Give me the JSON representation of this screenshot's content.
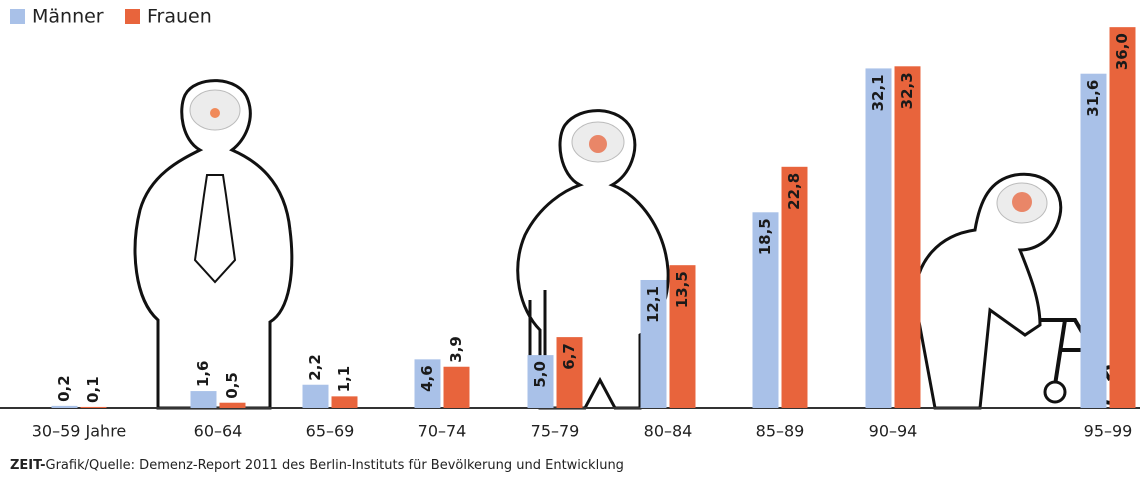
{
  "chart_data": {
    "type": "bar",
    "categories": [
      "30–59 Jahre",
      "60–64",
      "65–69",
      "70–74",
      "75–79",
      "80–84",
      "85–89",
      "90–94",
      "95–99"
    ],
    "series": [
      {
        "name": "Männer",
        "color": "#a9c1e8",
        "values": [
          0.2,
          1.6,
          2.2,
          4.6,
          5.0,
          12.1,
          18.5,
          32.1,
          31.6
        ],
        "value_labels": [
          "0,2",
          "1,6",
          "2,2",
          "4,6",
          "5,0",
          "12,1",
          "18,5",
          "32,1",
          "31,6"
        ]
      },
      {
        "name": "Frauen",
        "color": "#e8643c",
        "values": [
          0.1,
          0.5,
          1.1,
          3.9,
          6.7,
          13.5,
          22.8,
          32.3,
          36.0
        ],
        "value_labels": [
          "0,1",
          "0,5",
          "1,1",
          "3,9",
          "6,7",
          "13,5",
          "22,8",
          "32,3",
          "36,0"
        ]
      }
    ],
    "ylim": [
      0,
      38
    ],
    "source_prefix": "ZEIT-",
    "source": "Grafik/Quelle: Demenz-Report 2011 des Berlin-Instituts für Bevölkerung und Entwicklung"
  }
}
